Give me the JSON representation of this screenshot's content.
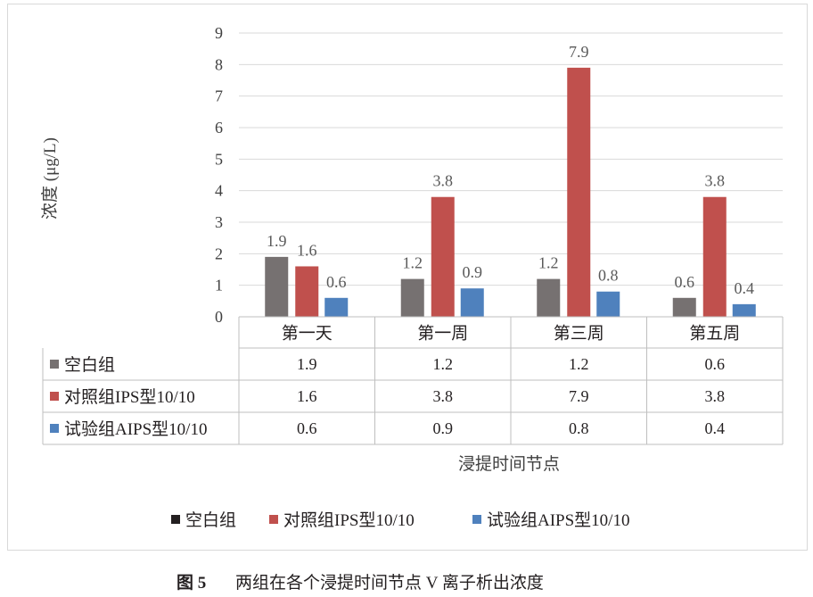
{
  "chart_data": {
    "type": "bar",
    "ylabel": "浓度 (μg/L)",
    "xlabel": "浸提时间节点",
    "ylim": [
      0,
      9
    ],
    "yticks": [
      "0",
      "1",
      "2",
      "3",
      "4",
      "5",
      "6",
      "7",
      "8",
      "9"
    ],
    "grid": true,
    "legend_position": "bottom",
    "categories": [
      "第一天",
      "第一周",
      "第三周",
      "第五周"
    ],
    "series": [
      {
        "name": "空白组",
        "values": [
          1.9,
          1.2,
          1.2,
          0.6
        ],
        "color": "#767171",
        "legend_color": "#231f20"
      },
      {
        "name": "对照组IPS型10/10",
        "values": [
          1.6,
          3.8,
          7.9,
          3.8
        ],
        "color": "#c0504d",
        "legend_color": "#c0504d"
      },
      {
        "name": "试验组AIPS型10/10",
        "values": [
          0.6,
          0.9,
          0.8,
          0.4
        ],
        "color": "#4f81bd",
        "legend_color": "#4f81bd"
      }
    ],
    "data_table": true
  },
  "caption": {
    "label": "图 5",
    "text": "两组在各个浸提时间节点 V 离子析出浓度"
  }
}
